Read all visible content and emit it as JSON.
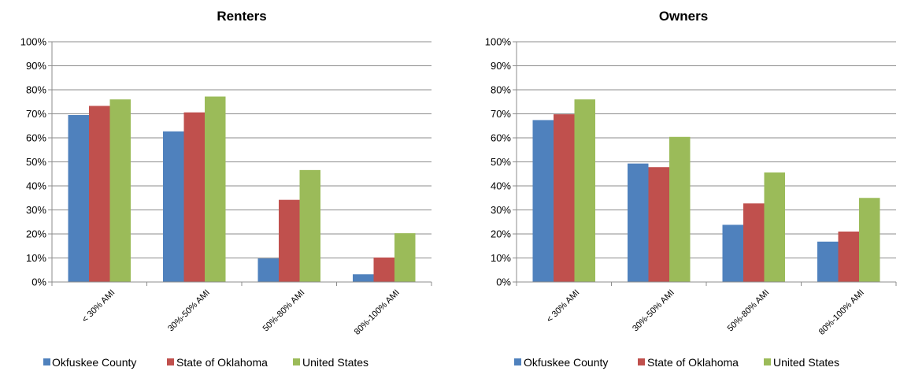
{
  "chart_data": [
    {
      "type": "bar",
      "title": "Renters",
      "categories": [
        "< 30% AMI",
        "30%-50% AMI",
        "50%-80% AMI",
        "80%-100% AMI"
      ],
      "series": [
        {
          "name": "Okfuskee County",
          "values": [
            69.5,
            62.7,
            9.8,
            3.2
          ]
        },
        {
          "name": "State of Oklahoma",
          "values": [
            73.3,
            70.6,
            34.2,
            10.2
          ]
        },
        {
          "name": "United States",
          "values": [
            76.0,
            77.2,
            46.6,
            20.3
          ]
        }
      ],
      "ylim": [
        0,
        100
      ],
      "yticks": [
        "0%",
        "10%",
        "20%",
        "30%",
        "40%",
        "50%",
        "60%",
        "70%",
        "80%",
        "90%",
        "100%"
      ],
      "grid": true,
      "legend": "bottom"
    },
    {
      "type": "bar",
      "title": "Owners",
      "categories": [
        "< 30% AMI",
        "30%-50% AMI",
        "50%-80% AMI",
        "80%-100% AMI"
      ],
      "series": [
        {
          "name": "Okfuskee County",
          "values": [
            67.4,
            49.3,
            23.8,
            16.8
          ]
        },
        {
          "name": "State of Oklahoma",
          "values": [
            69.8,
            47.8,
            32.7,
            21.0
          ]
        },
        {
          "name": "United States",
          "values": [
            76.0,
            60.4,
            45.6,
            35.0
          ]
        }
      ],
      "ylim": [
        0,
        100
      ],
      "yticks": [
        "0%",
        "10%",
        "20%",
        "30%",
        "40%",
        "50%",
        "60%",
        "70%",
        "80%",
        "90%",
        "100%"
      ],
      "grid": true,
      "legend": "bottom"
    }
  ],
  "colors": {
    "series": [
      "#4F81BD",
      "#C0504D",
      "#9BBB59"
    ],
    "grid": "#8c8c8c"
  }
}
